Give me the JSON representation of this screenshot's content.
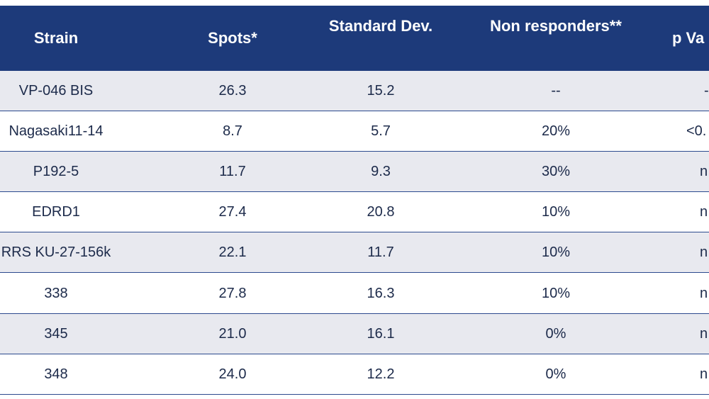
{
  "table": {
    "header": [
      "Strain",
      "Spots*",
      "Standard Dev.",
      "Non responders**",
      "p Va"
    ],
    "rows": [
      [
        "VP-046 BIS",
        "26.3",
        "15.2",
        "--",
        "-"
      ],
      [
        "Nagasaki11-14",
        "8.7",
        "5.7",
        "20%",
        "<0."
      ],
      [
        "P192-5",
        "11.7",
        "9.3",
        "30%",
        "n"
      ],
      [
        "EDRD1",
        "27.4",
        "20.8",
        "10%",
        "n"
      ],
      [
        "RRS KU-27-156k",
        "22.1",
        "11.7",
        "10%",
        "n"
      ],
      [
        "338",
        "27.8",
        "16.3",
        "10%",
        "n"
      ],
      [
        "345",
        "21.0",
        "16.1",
        "0%",
        "n"
      ],
      [
        "348",
        "24.0",
        "12.2",
        "0%",
        "n"
      ]
    ]
  }
}
